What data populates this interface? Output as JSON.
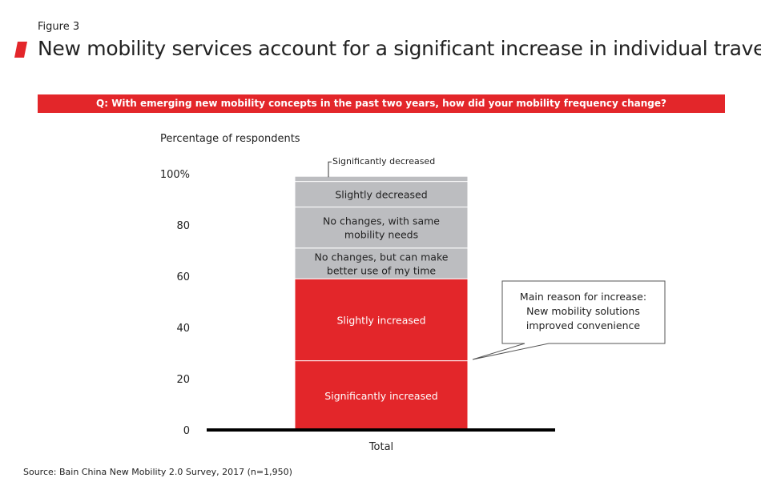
{
  "figure_label": "Figure 3",
  "title": "New mobility services account for a significant increase in individual travel",
  "question": "Q: With emerging new mobility concepts in the past two years, how did your mobility frequency change?",
  "source": "Source: Bain China New Mobility 2.0 Survey, 2017 (n=1,950)",
  "colors": {
    "accent": "#e3262a",
    "grey": "#bcbdc0"
  },
  "chart_data": {
    "type": "bar",
    "stacked": true,
    "ylabel": "Percentage of respondents",
    "ylim": [
      0,
      100
    ],
    "yticks": [
      "0",
      "20",
      "40",
      "60",
      "80",
      "100%"
    ],
    "categories": [
      "Total"
    ],
    "series": [
      {
        "name": "Significantly increased",
        "values": [
          27
        ],
        "color": "#e3262a"
      },
      {
        "name": "Slightly increased",
        "values": [
          32
        ],
        "color": "#e3262a"
      },
      {
        "name": "No changes, but can make better use of my time",
        "values": [
          12
        ],
        "color": "#bcbdc0"
      },
      {
        "name": "No changes, with same mobility needs",
        "values": [
          16
        ],
        "color": "#bcbdc0"
      },
      {
        "name": "Slightly decreased",
        "values": [
          10
        ],
        "color": "#bcbdc0"
      },
      {
        "name": "Significantly decreased",
        "values": [
          2
        ],
        "color": "#bcbdc0"
      }
    ],
    "annotation": "Main reason for increase: New mobility solutions improved convenience"
  }
}
